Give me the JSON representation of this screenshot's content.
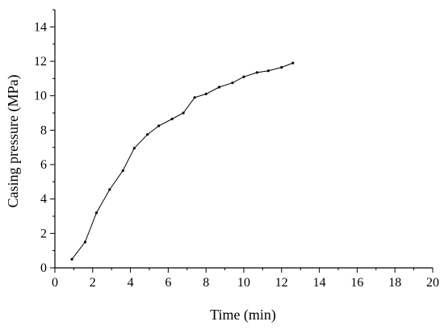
{
  "chart_data": {
    "type": "line",
    "xlabel": "Time (min)",
    "ylabel": "Casing pressure (MPa)",
    "xlim": [
      0,
      20
    ],
    "ylim": [
      0,
      15
    ],
    "xticks": [
      0,
      2,
      4,
      6,
      8,
      10,
      12,
      14,
      16,
      18,
      20
    ],
    "yticks": [
      0,
      2,
      4,
      6,
      8,
      10,
      12,
      14
    ],
    "grid": false,
    "series": [
      {
        "x": [
          0.9,
          1.6,
          2.2,
          2.9,
          3.6,
          4.2,
          4.9,
          5.5,
          6.2,
          6.8,
          7.4,
          8.0,
          8.7,
          9.4,
          10.0,
          10.7,
          11.3,
          12.0,
          12.6
        ],
        "y": [
          0.5,
          1.5,
          3.2,
          4.55,
          5.65,
          6.95,
          7.75,
          8.25,
          8.65,
          9.0,
          9.9,
          10.1,
          10.5,
          10.75,
          11.1,
          11.35,
          11.45,
          11.65,
          11.9
        ]
      }
    ],
    "colors": {
      "line": "#000000",
      "axis": "#000000"
    }
  }
}
